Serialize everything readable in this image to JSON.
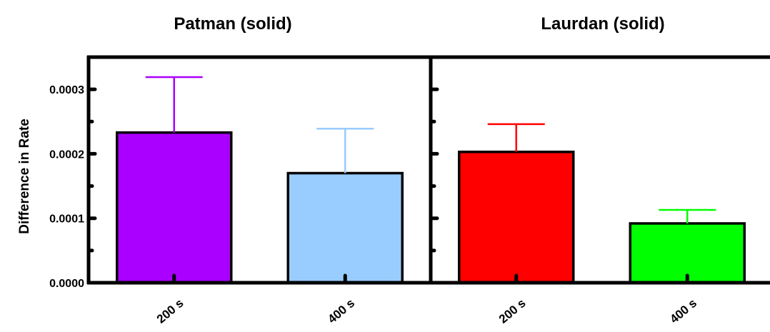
{
  "chart_data": {
    "type": "bar",
    "ylabel": "Difference in Rate",
    "ylim": [
      0,
      0.00035
    ],
    "y_major_ticks": [
      "0.0000",
      "0.0001",
      "0.0002",
      "0.0003"
    ],
    "y_major_values": [
      0,
      0.0001,
      0.0002,
      0.0003
    ],
    "y_minor_values": [
      5e-05,
      0.00015,
      0.00025
    ],
    "grid": false,
    "panels": [
      {
        "title": "Patman (solid)",
        "categories": [
          "200 s",
          "400 s"
        ],
        "values": [
          0.000233,
          0.00017
        ],
        "errors": [
          8.6e-05,
          6.9e-05
        ],
        "colors": [
          "#aa00ff",
          "#99ccff"
        ],
        "error_colors": [
          "#aa00ff",
          "#99ccff"
        ]
      },
      {
        "title": "Laurdan (solid)",
        "categories": [
          "200 s",
          "400 s"
        ],
        "values": [
          0.000203,
          9.2e-05
        ],
        "errors": [
          4.3e-05,
          2.1e-05
        ],
        "colors": [
          "#ff0000",
          "#00ff00"
        ],
        "error_colors": [
          "#ff0000",
          "#00ff00"
        ]
      }
    ]
  }
}
